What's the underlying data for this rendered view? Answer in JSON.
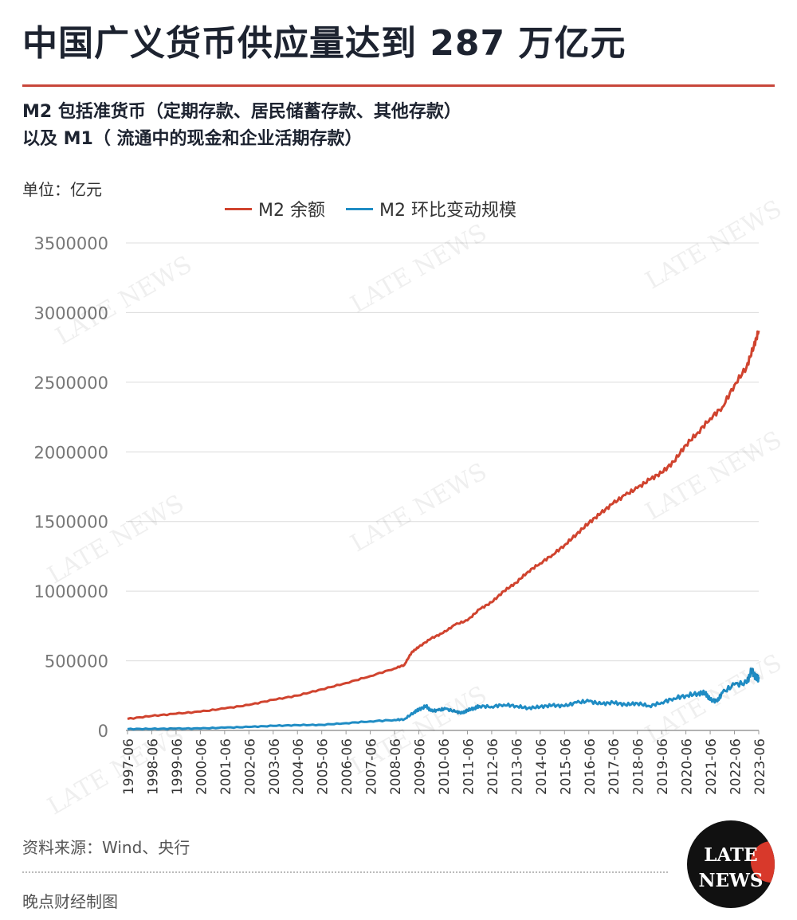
{
  "header": {
    "title": "中国广义货币供应量达到 287 万亿元",
    "subtitle_line1": "M2 包括准货币（定期存款、居民储蓄存款、其他存款）",
    "subtitle_line2": "以及 M1（ 流通中的现金和企业活期存款）",
    "unit": "单位：亿元"
  },
  "footer": {
    "source": "资料来源：Wind、央行",
    "credit": "晚点财经制图"
  },
  "logo": {
    "line1": "LATE",
    "line2": "NEWS"
  },
  "watermark_text": "LATE NEWS",
  "colors": {
    "m2": "#d0432e",
    "change": "#1f8cc4",
    "accent": "#c8463a"
  },
  "chart_data": {
    "type": "line",
    "title": "中国广义货币供应量达到 287 万亿元",
    "ylabel": "单位：亿元",
    "ylim": [
      0,
      3500000
    ],
    "yticks": [
      0,
      500000,
      1000000,
      1500000,
      2000000,
      2500000,
      3000000,
      3500000
    ],
    "xlim": [
      1997.5,
      2023.5
    ],
    "xticks": [
      "1997-06",
      "1998-06",
      "1999-06",
      "2000-06",
      "2001-06",
      "2002-06",
      "2003-06",
      "2004-06",
      "2005-06",
      "2006-06",
      "2007-06",
      "2008-06",
      "2009-06",
      "2010-06",
      "2011-06",
      "2012-06",
      "2013-06",
      "2014-06",
      "2015-06",
      "2016-06",
      "2017-06",
      "2018-06",
      "2019-06",
      "2020-06",
      "2021-06",
      "2022-06",
      "2023-06"
    ],
    "grid": true,
    "legend": "top",
    "series": [
      {
        "name": "M2 余额",
        "x": [
          1997.5,
          1998.5,
          1999.5,
          2000.5,
          2001.5,
          2002.5,
          2003.5,
          2004.5,
          2005.5,
          2006.5,
          2007.5,
          2008.5,
          2008.9,
          2009.2,
          2009.5,
          2010.0,
          2010.5,
          2011.0,
          2011.5,
          2012.0,
          2012.5,
          2013.0,
          2013.5,
          2014.0,
          2014.5,
          2015.0,
          2015.5,
          2016.0,
          2016.5,
          2017.0,
          2017.5,
          2018.0,
          2018.5,
          2019.0,
          2019.5,
          2020.0,
          2020.5,
          2021.0,
          2021.5,
          2022.0,
          2022.5,
          2023.0,
          2023.3,
          2023.5
        ],
        "values": [
          83000,
          104000,
          120000,
          135000,
          158000,
          183000,
          220000,
          250000,
          295000,
          340000,
          390000,
          445000,
          470000,
          560000,
          600000,
          660000,
          700000,
          760000,
          790000,
          870000,
          920000,
          1000000,
          1060000,
          1140000,
          1200000,
          1260000,
          1330000,
          1410000,
          1490000,
          1560000,
          1630000,
          1690000,
          1740000,
          1800000,
          1850000,
          1930000,
          2050000,
          2140000,
          2240000,
          2320000,
          2480000,
          2610000,
          2760000,
          2870000
        ]
      },
      {
        "name": "M2 环比变动规模",
        "x": [
          1997.5,
          1998.5,
          1999.5,
          2000.5,
          2001.5,
          2002.5,
          2003.5,
          2004.5,
          2005.5,
          2006.5,
          2007.5,
          2008.5,
          2008.9,
          2009.3,
          2009.5,
          2009.8,
          2010.0,
          2010.3,
          2010.6,
          2011.0,
          2011.3,
          2011.5,
          2011.8,
          2012.0,
          2012.5,
          2013.0,
          2013.5,
          2014.0,
          2014.5,
          2015.0,
          2015.5,
          2016.0,
          2016.5,
          2017.0,
          2017.5,
          2018.0,
          2018.5,
          2019.0,
          2019.5,
          2020.0,
          2020.5,
          2021.0,
          2021.3,
          2021.5,
          2021.8,
          2022.0,
          2022.5,
          2023.0,
          2023.2,
          2023.4,
          2023.5
        ],
        "values": [
          10000,
          11000,
          13000,
          14000,
          20000,
          25000,
          33000,
          38000,
          40000,
          52000,
          65000,
          75000,
          80000,
          130000,
          150000,
          175000,
          140000,
          145000,
          155000,
          135000,
          125000,
          145000,
          160000,
          175000,
          170000,
          185000,
          175000,
          160000,
          170000,
          180000,
          175000,
          200000,
          210000,
          190000,
          200000,
          185000,
          195000,
          175000,
          200000,
          230000,
          250000,
          265000,
          270000,
          220000,
          210000,
          270000,
          330000,
          340000,
          430000,
          380000,
          370000
        ]
      }
    ]
  }
}
